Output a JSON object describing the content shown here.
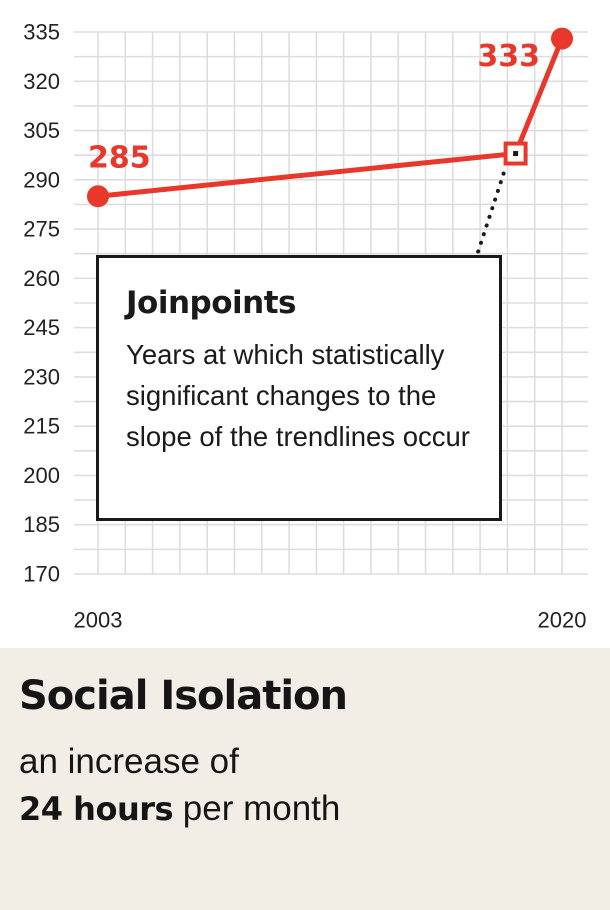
{
  "chart_data": {
    "type": "line",
    "title": "",
    "xlabel": "",
    "ylabel": "",
    "x_tick_labels": [
      "2003",
      "2020"
    ],
    "y_ticks": [
      170,
      185,
      200,
      215,
      230,
      245,
      260,
      275,
      290,
      305,
      320,
      335
    ],
    "xlim": [
      2003,
      2020
    ],
    "ylim": [
      170,
      335
    ],
    "grid": true,
    "series": [
      {
        "points": [
          {
            "x": 2003,
            "y": 285,
            "label": "285"
          },
          {
            "x": 2018.3,
            "y": 298
          },
          {
            "x": 2020,
            "y": 333,
            "label": "333"
          }
        ],
        "color": "#e8382c"
      }
    ],
    "joinpoint": {
      "x": 2018.3,
      "y": 298
    }
  },
  "callout": {
    "title": "Joinpoints",
    "body": "Years at which statistically significant changes to the slope of the trendlines occur"
  },
  "footer": {
    "title": "Social Isolation",
    "line1": "an increase of",
    "highlight": "24 hours",
    "line2_rest": " per month"
  },
  "colors": {
    "accent": "#e8382c",
    "footer_bg": "#f2eee5",
    "grid": "#dddddd"
  }
}
